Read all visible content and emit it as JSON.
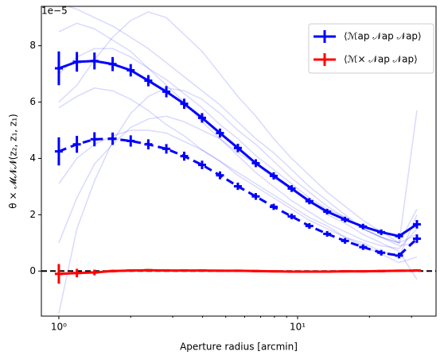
{
  "chart_data": {
    "type": "line",
    "ylabel": "θ × 𝓜𝓝𝓝(z₂, z₁, z₁)",
    "xlabel": "Aperture radius [arcmin]",
    "offset_label": "1e−5",
    "xscale": "log",
    "xlim": [
      0.845,
      38
    ],
    "ylim": [
      -1.6,
      9.4
    ],
    "xticks": [
      {
        "value": 1,
        "label": "10⁰"
      },
      {
        "value": 10,
        "label": "10¹"
      }
    ],
    "xminor": [
      2,
      3,
      4,
      5,
      6,
      7,
      8,
      9,
      20,
      30
    ],
    "yticks": [
      0,
      2,
      4,
      6,
      8
    ],
    "hline": 0,
    "legend": "upper right",
    "x": [
      1,
      1.19,
      1.41,
      1.68,
      2.0,
      2.37,
      2.82,
      3.35,
      3.98,
      4.73,
      5.62,
      6.68,
      7.94,
      9.44,
      11.2,
      13.3,
      15.8,
      18.8,
      22.4,
      26.6,
      31.6
    ],
    "series": [
      {
        "name": "⟨ℳap 𝒩ap 𝒩ap⟩",
        "color": "#0000ff",
        "dash": false,
        "values": [
          7.2,
          7.43,
          7.46,
          7.35,
          7.13,
          6.76,
          6.37,
          5.94,
          5.44,
          4.9,
          4.37,
          3.83,
          3.38,
          2.93,
          2.48,
          2.11,
          1.83,
          1.58,
          1.38,
          1.24,
          1.66
        ],
        "errors": [
          0.6,
          0.35,
          0.3,
          0.25,
          0.22,
          0.2,
          0.2,
          0.18,
          0.17,
          0.16,
          0.15,
          0.14,
          0.13,
          0.12,
          0.11,
          0.1,
          0.1,
          0.1,
          0.1,
          0.1,
          0.15
        ]
      },
      {
        "color": "#0000ff",
        "dash": true,
        "values": [
          4.25,
          4.5,
          4.68,
          4.7,
          4.62,
          4.5,
          4.34,
          4.08,
          3.77,
          3.4,
          3.01,
          2.65,
          2.28,
          1.94,
          1.6,
          1.32,
          1.07,
          0.85,
          0.65,
          0.55,
          1.15
        ],
        "errors": [
          0.5,
          0.3,
          0.25,
          0.22,
          0.2,
          0.18,
          0.17,
          0.16,
          0.15,
          0.14,
          0.13,
          0.12,
          0.11,
          0.1,
          0.1,
          0.1,
          0.1,
          0.1,
          0.1,
          0.1,
          0.15
        ]
      },
      {
        "name": "⟨ℳ× 𝒩ap 𝒩ap⟩",
        "color": "#ff0000",
        "dash": false,
        "values": [
          -0.1,
          -0.07,
          -0.05,
          0,
          0.02,
          0.03,
          0.02,
          0.02,
          0.02,
          0.01,
          0.01,
          0,
          -0.01,
          -0.02,
          -0.02,
          -0.02,
          -0.01,
          -0.01,
          0,
          0.01,
          0.02
        ],
        "errors": [
          0.35,
          0.15,
          0.1,
          0.05,
          0.04,
          0.04,
          0.03,
          0.03,
          0.03,
          0.03,
          0.03,
          0.03,
          0.03,
          0.03,
          0.03,
          0.03,
          0.03,
          0.03,
          0.03,
          0.03,
          0.04
        ]
      }
    ],
    "realizations_color": "#0000ff",
    "realizations": [
      [
        8.5,
        8.8,
        8.6,
        8.2,
        7.8,
        7.2,
        6.6,
        6.0,
        5.3,
        4.7,
        4.1,
        3.5,
        3.0,
        2.5,
        2.1,
        1.7,
        1.4,
        1.1,
        0.9,
        0.8,
        1.5
      ],
      [
        5.8,
        6.2,
        6.5,
        6.4,
        6.1,
        5.7,
        5.2,
        4.8,
        4.3,
        3.9,
        3.4,
        3.0,
        2.6,
        2.2,
        1.8,
        1.5,
        1.2,
        1.0,
        0.7,
        0.5,
        2.0
      ],
      [
        3.1,
        4.0,
        4.5,
        4.8,
        5.0,
        5.0,
        4.9,
        4.6,
        4.3,
        3.9,
        3.5,
        3.1,
        2.7,
        2.3,
        1.9,
        1.6,
        1.2,
        0.9,
        0.6,
        0.3,
        0.5
      ],
      [
        9.5,
        9.3,
        9.0,
        8.7,
        8.3,
        7.9,
        7.4,
        6.9,
        6.4,
        5.9,
        5.3,
        4.7,
        4.2,
        3.6,
        3.0,
        2.5,
        2.0,
        1.5,
        1.2,
        1.0,
        2.2
      ],
      [
        1.0,
        2.6,
        3.8,
        4.5,
        5.1,
        5.4,
        5.5,
        5.3,
        5.0,
        4.7,
        4.2,
        3.8,
        3.3,
        2.9,
        2.5,
        2.0,
        1.7,
        1.3,
        1.0,
        0.7,
        -0.3
      ],
      [
        7.0,
        7.6,
        7.9,
        7.9,
        7.6,
        7.2,
        6.8,
        6.3,
        5.8,
        5.2,
        4.7,
        4.1,
        3.6,
        3.1,
        2.6,
        2.2,
        1.9,
        1.5,
        1.2,
        1.0,
        1.3
      ],
      [
        -1.5,
        1.5,
        3.2,
        4.6,
        5.6,
        6.2,
        6.5,
        6.4,
        6.1,
        5.6,
        5.0,
        4.5,
        3.9,
        3.3,
        2.8,
        2.3,
        1.9,
        1.5,
        1.2,
        0.9,
        1.0
      ],
      [
        6.0,
        6.6,
        7.5,
        8.3,
        8.9,
        9.2,
        9.0,
        8.4,
        7.8,
        7.0,
        6.2,
        5.5,
        4.7,
        4.0,
        3.4,
        2.8,
        2.3,
        1.8,
        1.4,
        1.0,
        5.7
      ]
    ]
  }
}
